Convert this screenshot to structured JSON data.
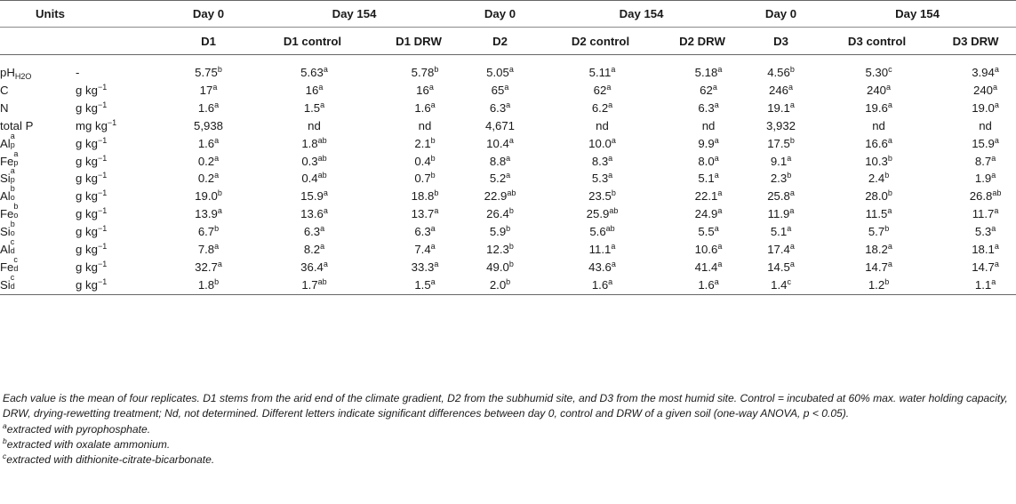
{
  "table": {
    "group_header": {
      "units": "Units",
      "groups": [
        "Day 0",
        "Day 154",
        "Day 0",
        "Day 154",
        "Day 0",
        "Day 154"
      ]
    },
    "sub_header": [
      "D1",
      "D1 control",
      "D1 DRW",
      "D2",
      "D2 control",
      "D2 DRW",
      "D3",
      "D3 control",
      "D3 DRW"
    ],
    "rows": [
      {
        "var": {
          "base": "pH",
          "sub": "H2O",
          "sup": ""
        },
        "unit": {
          "text": "-",
          "sup": ""
        },
        "values": [
          [
            "5.75",
            "b"
          ],
          [
            "5.63",
            "a"
          ],
          [
            "5.78",
            "b"
          ],
          [
            "5.05",
            "a"
          ],
          [
            "5.11",
            "a"
          ],
          [
            "5.18",
            "a"
          ],
          [
            "4.56",
            "b"
          ],
          [
            "5.30",
            "c"
          ],
          [
            "3.94",
            "a"
          ]
        ]
      },
      {
        "var": {
          "base": "C",
          "sub": "",
          "sup": ""
        },
        "unit": {
          "text": "g kg",
          "sup": "−1"
        },
        "values": [
          [
            "17",
            "a"
          ],
          [
            "16",
            "a"
          ],
          [
            "16",
            "a"
          ],
          [
            "65",
            "a"
          ],
          [
            "62",
            "a"
          ],
          [
            "62",
            "a"
          ],
          [
            "246",
            "a"
          ],
          [
            "240",
            "a"
          ],
          [
            "240",
            "a"
          ]
        ]
      },
      {
        "var": {
          "base": "N",
          "sub": "",
          "sup": ""
        },
        "unit": {
          "text": "g kg",
          "sup": "−1"
        },
        "values": [
          [
            "1.6",
            "a"
          ],
          [
            "1.5",
            "a"
          ],
          [
            "1.6",
            "a"
          ],
          [
            "6.3",
            "a"
          ],
          [
            "6.2",
            "a"
          ],
          [
            "6.3",
            "a"
          ],
          [
            "19.1",
            "a"
          ],
          [
            "19.6",
            "a"
          ],
          [
            "19.0",
            "a"
          ]
        ]
      },
      {
        "var": {
          "base": "total P",
          "sub": "",
          "sup": ""
        },
        "unit": {
          "text": "mg kg",
          "sup": "−1"
        },
        "values": [
          [
            "5,938",
            ""
          ],
          [
            "nd",
            ""
          ],
          [
            "nd",
            ""
          ],
          [
            "4,671",
            ""
          ],
          [
            "nd",
            ""
          ],
          [
            "nd",
            ""
          ],
          [
            "3,932",
            ""
          ],
          [
            "nd",
            ""
          ],
          [
            "nd",
            ""
          ]
        ]
      },
      {
        "var": {
          "base": "Al",
          "sub": "p",
          "sup": "a"
        },
        "unit": {
          "text": "g kg",
          "sup": "−1"
        },
        "values": [
          [
            "1.6",
            "a"
          ],
          [
            "1.8",
            "ab"
          ],
          [
            "2.1",
            "b"
          ],
          [
            "10.4",
            "a"
          ],
          [
            "10.0",
            "a"
          ],
          [
            "9.9",
            "a"
          ],
          [
            "17.5",
            "b"
          ],
          [
            "16.6",
            "a"
          ],
          [
            "15.9",
            "a"
          ]
        ]
      },
      {
        "var": {
          "base": "Fe",
          "sub": "p",
          "sup": "a"
        },
        "unit": {
          "text": "g kg",
          "sup": "−1"
        },
        "values": [
          [
            "0.2",
            "a"
          ],
          [
            "0.3",
            "ab"
          ],
          [
            "0.4",
            "b"
          ],
          [
            "8.8",
            "a"
          ],
          [
            "8.3",
            "a"
          ],
          [
            "8.0",
            "a"
          ],
          [
            "9.1",
            "a"
          ],
          [
            "10.3",
            "b"
          ],
          [
            "8.7",
            "a"
          ]
        ]
      },
      {
        "var": {
          "base": "Si",
          "sub": "p",
          "sup": "a"
        },
        "unit": {
          "text": "g kg",
          "sup": "−1"
        },
        "values": [
          [
            "0.2",
            "a"
          ],
          [
            "0.4",
            "ab"
          ],
          [
            "0.7",
            "b"
          ],
          [
            "5.2",
            "a"
          ],
          [
            "5.3",
            "a"
          ],
          [
            "5.1",
            "a"
          ],
          [
            "2.3",
            "b"
          ],
          [
            "2.4",
            "b"
          ],
          [
            "1.9",
            "a"
          ]
        ]
      },
      {
        "var": {
          "base": "Al",
          "sub": "o",
          "sup": "b"
        },
        "unit": {
          "text": "g kg",
          "sup": "−1"
        },
        "values": [
          [
            "19.0",
            "b"
          ],
          [
            "15.9",
            "a"
          ],
          [
            "18.8",
            "b"
          ],
          [
            "22.9",
            "ab"
          ],
          [
            "23.5",
            "b"
          ],
          [
            "22.1",
            "a"
          ],
          [
            "25.8",
            "a"
          ],
          [
            "28.0",
            "b"
          ],
          [
            "26.8",
            "ab"
          ]
        ]
      },
      {
        "var": {
          "base": "Fe",
          "sub": "o",
          "sup": "b"
        },
        "unit": {
          "text": "g kg",
          "sup": "−1"
        },
        "values": [
          [
            "13.9",
            "a"
          ],
          [
            "13.6",
            "a"
          ],
          [
            "13.7",
            "a"
          ],
          [
            "26.4",
            "b"
          ],
          [
            "25.9",
            "ab"
          ],
          [
            "24.9",
            "a"
          ],
          [
            "11.9",
            "a"
          ],
          [
            "11.5",
            "a"
          ],
          [
            "11.7",
            "a"
          ]
        ]
      },
      {
        "var": {
          "base": "Si",
          "sub": "o",
          "sup": "b"
        },
        "unit": {
          "text": "g kg",
          "sup": "−1"
        },
        "values": [
          [
            "6.7",
            "b"
          ],
          [
            "6.3",
            "a"
          ],
          [
            "6.3",
            "a"
          ],
          [
            "5.9",
            "b"
          ],
          [
            "5.6",
            "ab"
          ],
          [
            "5.5",
            "a"
          ],
          [
            "5.1",
            "a"
          ],
          [
            "5.7",
            "b"
          ],
          [
            "5.3",
            "a"
          ]
        ]
      },
      {
        "var": {
          "base": "Al",
          "sub": "d",
          "sup": "c"
        },
        "unit": {
          "text": "g kg",
          "sup": "−1"
        },
        "values": [
          [
            "7.8",
            "a"
          ],
          [
            "8.2",
            "a"
          ],
          [
            "7.4",
            "a"
          ],
          [
            "12.3",
            "b"
          ],
          [
            "11.1",
            "a"
          ],
          [
            "10.6",
            "a"
          ],
          [
            "17.4",
            "a"
          ],
          [
            "18.2",
            "a"
          ],
          [
            "18.1",
            "a"
          ]
        ]
      },
      {
        "var": {
          "base": "Fe",
          "sub": "d",
          "sup": "c"
        },
        "unit": {
          "text": "g kg",
          "sup": "−1"
        },
        "values": [
          [
            "32.7",
            "a"
          ],
          [
            "36.4",
            "a"
          ],
          [
            "33.3",
            "a"
          ],
          [
            "49.0",
            "b"
          ],
          [
            "43.6",
            "a"
          ],
          [
            "41.4",
            "a"
          ],
          [
            "14.5",
            "a"
          ],
          [
            "14.7",
            "a"
          ],
          [
            "14.7",
            "a"
          ]
        ]
      },
      {
        "var": {
          "base": "Si",
          "sub": "d",
          "sup": "c"
        },
        "unit": {
          "text": "g kg",
          "sup": "−1"
        },
        "values": [
          [
            "1.8",
            "b"
          ],
          [
            "1.7",
            "ab"
          ],
          [
            "1.5",
            "a"
          ],
          [
            "2.0",
            "b"
          ],
          [
            "1.6",
            "a"
          ],
          [
            "1.6",
            "a"
          ],
          [
            "1.4",
            "c"
          ],
          [
            "1.2",
            "b"
          ],
          [
            "1.1",
            "a"
          ]
        ]
      }
    ]
  },
  "notes": {
    "main": "Each value is the mean of four replicates. D1 stems from the arid end of the climate gradient, D2 from the subhumid site, and D3 from the most humid site. Control = incubated at 60% max. water holding capacity, DRW, drying-rewetting treatment; Nd, not determined. Different letters indicate significant differences between day 0, control and DRW of a given soil (one-way ANOVA, p < 0.05).",
    "footnotes": [
      {
        "mark": "a",
        "text": "extracted with pyrophosphate."
      },
      {
        "mark": "b",
        "text": "extracted with oxalate ammonium."
      },
      {
        "mark": "c",
        "text": "extracted with dithionite-citrate-bicarbonate."
      }
    ]
  }
}
